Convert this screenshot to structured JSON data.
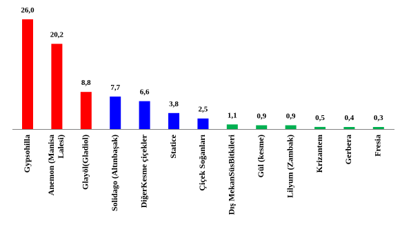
{
  "chart_data": {
    "type": "bar",
    "title": "",
    "xlabel": "",
    "ylabel": "",
    "ylim": [
      0,
      27
    ],
    "grid": false,
    "legend": "none",
    "categories": [
      "Gypsohilla",
      "Anemon (Manisa Lalesi)",
      "Glayöl(Gladiol)",
      "Solidago (Altınbaşak)",
      "DiğerKesme çiçekler",
      "Statice",
      "Çiçek Soğanları",
      "Dış MekanSüsBitkileri",
      "Gül (kesme)",
      "Lilyum (Zambak)",
      "Krizantem",
      "Gerbera",
      "Fresia"
    ],
    "category_lines": [
      [
        "Gypsohilla"
      ],
      [
        "Anemon (Manisa",
        "Lalesi)"
      ],
      [
        "Glayöl(Gladiol)"
      ],
      [
        "Solidago (Altınbaşak)"
      ],
      [
        "DiğerKesme çiçekler"
      ],
      [
        "Statice"
      ],
      [
        "Çiçek Soğanları"
      ],
      [
        "Dış MekanSüsBitkileri"
      ],
      [
        "Gül (kesme)"
      ],
      [
        "Lilyum (Zambak)"
      ],
      [
        "Krizantem"
      ],
      [
        "Gerbera"
      ],
      [
        "Fresia"
      ]
    ],
    "values": [
      26.0,
      20.2,
      8.8,
      7.7,
      6.6,
      3.8,
      2.5,
      1.1,
      0.9,
      0.9,
      0.5,
      0.4,
      0.3
    ],
    "value_labels": [
      "26,0",
      "20,2",
      "8,8",
      "7,7",
      "6,6",
      "3,8",
      "2,5",
      "1,1",
      "0,9",
      "0,9",
      "0,5",
      "0,4",
      "0,3"
    ],
    "bar_colors": [
      "#ff0000",
      "#ff0000",
      "#ff0000",
      "#0000ff",
      "#0000ff",
      "#0000ff",
      "#0000ff",
      "#00b050",
      "#00b050",
      "#00b050",
      "#00b050",
      "#00b050",
      "#00b050"
    ],
    "axis_color": "#808080"
  }
}
